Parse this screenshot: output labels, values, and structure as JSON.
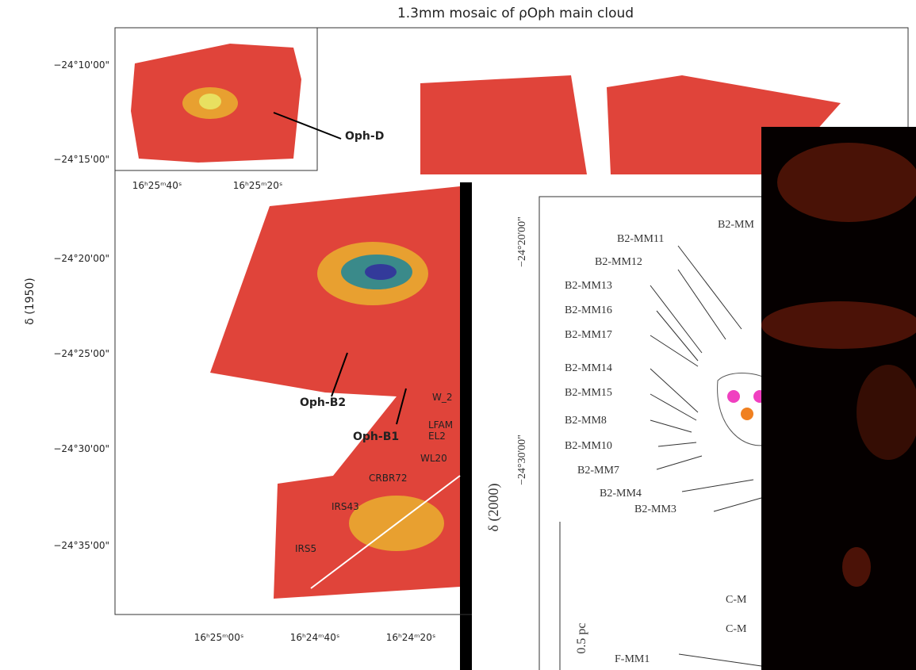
{
  "title": "1.3mm mosaic of ρOph main cloud",
  "left_panel": {
    "y_label": "δ (1950)",
    "inset_y_ticks": [
      "−24°10'00\"",
      "−24°15'00\""
    ],
    "inset_x_ticks": [
      "16ʰ25ᵐ40ˢ",
      "16ʰ25ᵐ20ˢ"
    ],
    "y_ticks": [
      "−24°20'00\"",
      "−24°25'00\"",
      "−24°30'00\"",
      "−24°35'00\""
    ],
    "x_ticks": [
      "16ʰ25ᵐ00ˢ",
      "16ʰ24ᵐ40ˢ",
      "16ʰ24ᵐ20ˢ"
    ],
    "labels": [
      "Oph-D",
      "Oph-B2",
      "Oph-B1",
      "W_2",
      "LFAM",
      "EL2",
      "WL20",
      "CRBR72",
      "IRS43",
      "IRS5"
    ]
  },
  "right_panel": {
    "y_label": "δ (2000)",
    "y_ticks": [
      "−24°20'00\"",
      "−24°30'00\""
    ],
    "scale": "0.5 pc",
    "labels": [
      "B2-MM",
      "B2-MM11",
      "B2-MM12",
      "B2-MM13",
      "B2-MM16",
      "B2-MM17",
      "B2-MM14",
      "B2-MM15",
      "B2-MM8",
      "B2-MM10",
      "B2-MM7",
      "B2-MM4",
      "B2-MM3",
      "C-M",
      "C-M",
      "F-MM1"
    ]
  }
}
